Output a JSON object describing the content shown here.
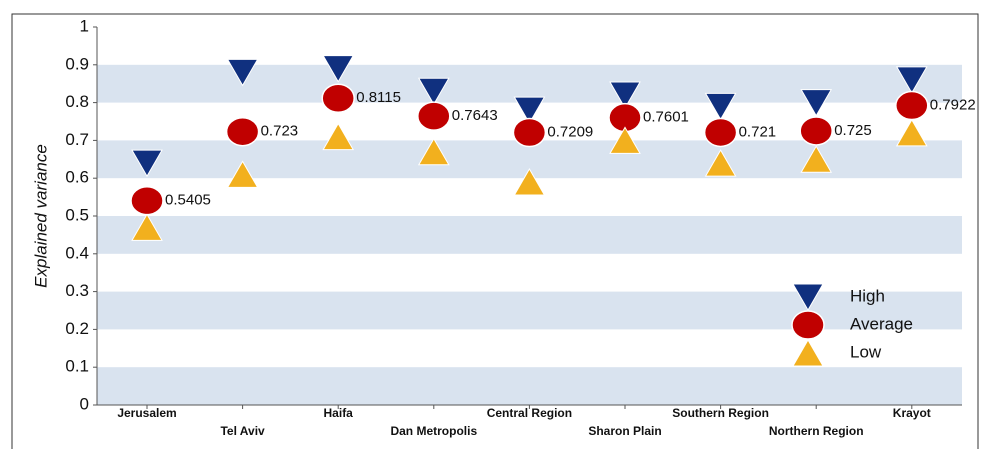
{
  "chart_data": {
    "type": "marker",
    "y_label": "Explained variance",
    "categories": [
      "Jerusalem",
      "Tel Aviv",
      "Haifa",
      "Dan Metropolis",
      "Central Region",
      "Sharon Plain",
      "Southern Region",
      "Northern Region",
      "Krayot"
    ],
    "series": [
      {
        "name": "High",
        "color": "#10307f",
        "marker": "triangle-down",
        "values": [
          0.64,
          0.88,
          0.89,
          0.83,
          0.78,
          0.82,
          0.79,
          0.8,
          0.86
        ]
      },
      {
        "name": "Average",
        "color": "#c00000",
        "marker": "circle",
        "show_values": true,
        "values": [
          0.5405,
          0.723,
          0.8115,
          0.7643,
          0.7209,
          0.7601,
          0.721,
          0.725,
          0.7922
        ]
      },
      {
        "name": "Low",
        "color": "#f2b01e",
        "marker": "triangle-up",
        "values": [
          0.47,
          0.61,
          0.71,
          0.67,
          0.59,
          0.7,
          0.64,
          0.65,
          0.72
        ]
      }
    ],
    "ylim": [
      0,
      1
    ],
    "yticks": [
      0,
      0.1,
      0.2,
      0.3,
      0.4,
      0.5,
      0.6,
      0.7,
      0.8,
      0.9,
      1
    ],
    "grid": "bands",
    "band_color": "#d9e3ef",
    "legend": "lower right"
  }
}
